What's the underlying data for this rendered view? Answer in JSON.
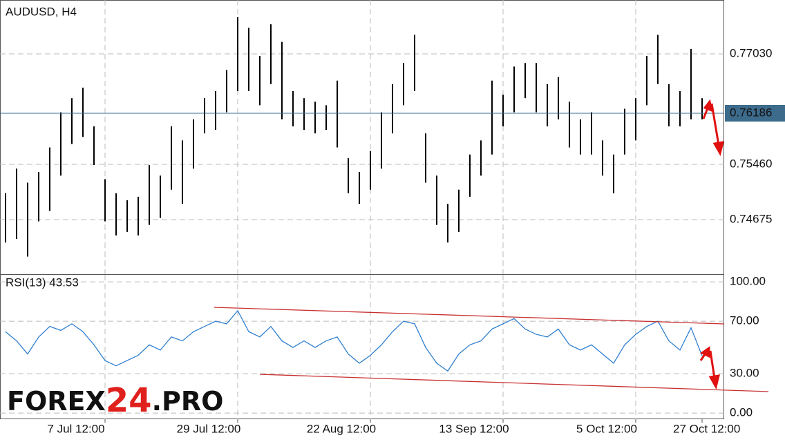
{
  "chart_data": [
    {
      "type": "range_bar",
      "title": "AUDUSD, H4",
      "color": "#000000",
      "series": [
        {
          "name": "high",
          "values": [
            0.7505,
            0.754,
            0.752,
            0.7535,
            0.757,
            0.762,
            0.764,
            0.7655,
            0.76,
            0.7525,
            0.7505,
            0.7495,
            0.75,
            0.7545,
            0.753,
            0.76,
            0.758,
            0.761,
            0.764,
            0.765,
            0.768,
            0.7755,
            0.774,
            0.77,
            0.7745,
            0.772,
            0.765,
            0.764,
            0.7635,
            0.763,
            0.7665,
            0.7555,
            0.7535,
            0.7565,
            0.762,
            0.766,
            0.769,
            0.773,
            0.759,
            0.753,
            0.749,
            0.751,
            0.756,
            0.758,
            0.7665,
            0.7645,
            0.7685,
            0.769,
            0.769,
            0.766,
            0.767,
            0.7635,
            0.761,
            0.762,
            0.758,
            0.756,
            0.7625,
            0.764,
            0.77,
            0.773,
            0.766,
            0.765,
            0.771,
            0.764
          ]
        },
        {
          "name": "low",
          "values": [
            0.7435,
            0.744,
            0.7415,
            0.7465,
            0.748,
            0.753,
            0.7575,
            0.7585,
            0.7545,
            0.7465,
            0.7445,
            0.745,
            0.7445,
            0.746,
            0.747,
            0.751,
            0.749,
            0.754,
            0.759,
            0.7595,
            0.762,
            0.765,
            0.765,
            0.763,
            0.766,
            0.761,
            0.76,
            0.7595,
            0.759,
            0.7595,
            0.757,
            0.7505,
            0.749,
            0.751,
            0.754,
            0.759,
            0.763,
            0.765,
            0.752,
            0.746,
            0.7435,
            0.745,
            0.75,
            0.753,
            0.756,
            0.76,
            0.762,
            0.764,
            0.762,
            0.76,
            0.761,
            0.757,
            0.756,
            0.756,
            0.753,
            0.7505,
            0.756,
            0.758,
            0.763,
            0.766,
            0.76,
            0.76,
            0.761,
            0.761
          ]
        }
      ],
      "current_price": 0.76186,
      "current_price_color": "#3d6b8c",
      "ylim": [
        0.739,
        0.77795
      ],
      "yticks": [
        {
          "value": 0.7703,
          "label": "0.77030"
        },
        {
          "value": 0.7546,
          "label": "0.75460"
        },
        0.74675
      ],
      "grid": true
    },
    {
      "type": "line",
      "title": "RSI(13) 43.53",
      "color": "#2f7fd0",
      "values": [
        62,
        55,
        45,
        58,
        66,
        63,
        68,
        62,
        52,
        40,
        36,
        40,
        44,
        52,
        48,
        58,
        55,
        62,
        66,
        70,
        68,
        78,
        62,
        58,
        66,
        55,
        50,
        55,
        50,
        55,
        58,
        45,
        38,
        44,
        52,
        62,
        70,
        68,
        50,
        38,
        32,
        45,
        52,
        55,
        64,
        68,
        72,
        64,
        60,
        58,
        64,
        52,
        48,
        52,
        45,
        38,
        52,
        60,
        66,
        70,
        55,
        48,
        65,
        43.53
      ],
      "ylim": [
        -4.7,
        105.3
      ],
      "yticks": [
        {
          "value": 100,
          "label": "100.00"
        },
        {
          "value": 70,
          "label": "70.00"
        },
        {
          "value": 30,
          "label": "30.00"
        },
        {
          "value": 0,
          "label": "0.00"
        }
      ],
      "xticks": [
        {
          "value": 9,
          "label": "7 Jul 12:00"
        },
        {
          "value": 21,
          "label": "29 Jul 12:00"
        },
        {
          "value": 33,
          "label": "22 Aug 12:00"
        },
        {
          "value": 45,
          "label": "13 Sep 12:00"
        },
        {
          "value": 57,
          "label": "5 Oct 12:00"
        },
        {
          "value": 63,
          "label": "27 Oct 12:00"
        }
      ],
      "grid": true
    }
  ],
  "watermark": [
    "FOREX",
    "24",
    ".PRO"
  ]
}
